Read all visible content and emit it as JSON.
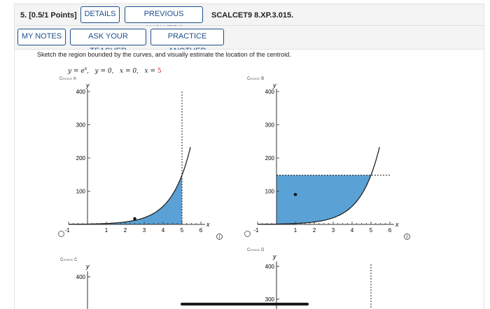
{
  "header": {
    "question_number": "5. [0.5/1 Points]",
    "details_label": "DETAILS",
    "previous_answers_label": "PREVIOUS ANSWERS",
    "problem_code": "SCALCET9 8.XP.3.015."
  },
  "toolbar": {
    "my_notes_label": "MY NOTES",
    "ask_teacher_label": "ASK YOUR TEACHER",
    "practice_another_label": "PRACTICE ANOTHER"
  },
  "question": {
    "instruction": "Sketch the region bounded by the curves, and visually estimate the location of the centroid.",
    "equation_prefix": "y = e",
    "equation_exp": "x",
    "equation_middle": ",   y = 0,   x = 0,   x = ",
    "equation_value": "5"
  },
  "choices": [
    {
      "label": "Choice A"
    },
    {
      "label": "Choice B"
    },
    {
      "label": "Choice C"
    },
    {
      "label": "Choice D"
    }
  ],
  "info_icon": "i",
  "chart_data": [
    {
      "type": "area",
      "label": "Choice A",
      "curve": "y = e^x",
      "shaded_region": "under the curve from x = 0 to x = 5",
      "xlabel": "x",
      "ylabel": "y",
      "xlim": [
        -1,
        6
      ],
      "ylim": [
        0,
        400
      ],
      "x_ticks": [
        -1,
        1,
        2,
        3,
        4,
        5,
        6
      ],
      "y_ticks": [
        100,
        200,
        300,
        400
      ],
      "dashed_vertical_line_x": 5,
      "centroid_point": {
        "x": 2.5,
        "y": 17
      },
      "fill_color": "#5aa2d6"
    },
    {
      "type": "area",
      "label": "Choice B",
      "curve": "y = e^x",
      "shaded_region": "above the curve, below y = e^5, from x = 0",
      "xlabel": "x",
      "ylabel": "y",
      "xlim": [
        -1,
        6
      ],
      "ylim": [
        0,
        400
      ],
      "x_ticks": [
        -1,
        1,
        2,
        3,
        4,
        5,
        6
      ],
      "y_ticks": [
        100,
        200,
        300,
        400
      ],
      "dashed_horizontal_line_y": 148.4,
      "centroid_point": {
        "x": 1,
        "y": 90
      },
      "fill_color": "#5aa2d6"
    },
    {
      "type": "area",
      "label": "Choice C",
      "xlabel": "",
      "ylabel": "y",
      "ylim": [
        0,
        400
      ],
      "y_ticks": [
        400
      ]
    },
    {
      "type": "area",
      "label": "Choice D",
      "xlabel": "",
      "ylabel": "y",
      "ylim": [
        0,
        400
      ],
      "y_ticks": [
        300,
        400
      ]
    }
  ]
}
